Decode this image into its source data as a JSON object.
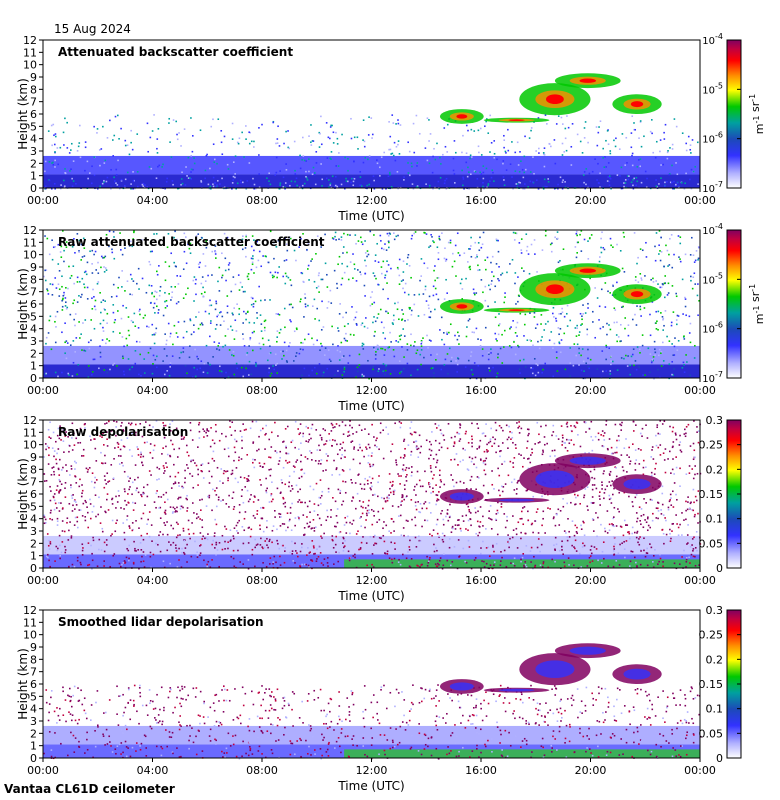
{
  "date_label": "15 Aug 2024",
  "footer_label": "Vantaa CL61D ceilometer",
  "colors": {
    "background": "#ffffff",
    "cmap": [
      "#ffffff",
      "#b0b0ff",
      "#3232ff",
      "#1c4ab8",
      "#00a0a0",
      "#00c800",
      "#ffff00",
      "#ff8c00",
      "#ff0000",
      "#c00040",
      "#800060"
    ]
  },
  "chart_data": [
    {
      "type": "heatmap",
      "title": "Attenuated backscatter coefficient",
      "xlabel": "Time (UTC)",
      "ylabel": "Height (km)",
      "xticks": [
        "00:00",
        "04:00",
        "08:00",
        "12:00",
        "16:00",
        "20:00",
        "00:00"
      ],
      "yticks": [
        "0",
        "1",
        "2",
        "3",
        "4",
        "5",
        "6",
        "7",
        "8",
        "9",
        "10",
        "11",
        "12"
      ],
      "xlim": [
        0,
        24
      ],
      "ylim": [
        0,
        12
      ],
      "colorbar": {
        "scale": "log",
        "ticks": [
          "10-7",
          "10-6",
          "10-5",
          "10-4"
        ],
        "unit_label": "m-1 sr-1"
      }
    },
    {
      "type": "heatmap",
      "title": "Raw attenuated backscatter coefficient",
      "xlabel": "Time (UTC)",
      "ylabel": "Height (km)",
      "xticks": [
        "00:00",
        "04:00",
        "08:00",
        "12:00",
        "16:00",
        "20:00",
        "00:00"
      ],
      "yticks": [
        "0",
        "1",
        "2",
        "3",
        "4",
        "5",
        "6",
        "7",
        "8",
        "9",
        "10",
        "11",
        "12"
      ],
      "xlim": [
        0,
        24
      ],
      "ylim": [
        0,
        12
      ],
      "colorbar": {
        "scale": "log",
        "ticks": [
          "10-7",
          "10-6",
          "10-5",
          "10-4"
        ],
        "unit_label": "m-1 sr-1"
      }
    },
    {
      "type": "heatmap",
      "title": "Raw depolarisation",
      "xlabel": "Time (UTC)",
      "ylabel": "Height (km)",
      "xticks": [
        "00:00",
        "04:00",
        "08:00",
        "12:00",
        "16:00",
        "20:00",
        "00:00"
      ],
      "yticks": [
        "0",
        "1",
        "2",
        "3",
        "4",
        "5",
        "6",
        "7",
        "8",
        "9",
        "10",
        "11",
        "12"
      ],
      "xlim": [
        0,
        24
      ],
      "ylim": [
        0,
        12
      ],
      "colorbar": {
        "scale": "linear",
        "ticks": [
          "0",
          "0.05",
          "0.1",
          "0.15",
          "0.2",
          "0.25",
          "0.3"
        ],
        "unit_label": ""
      }
    },
    {
      "type": "heatmap",
      "title": "Smoothed lidar depolarisation",
      "xlabel": "Time (UTC)",
      "ylabel": "Height (km)",
      "xticks": [
        "00:00",
        "04:00",
        "08:00",
        "12:00",
        "16:00",
        "20:00",
        "00:00"
      ],
      "yticks": [
        "0",
        "1",
        "2",
        "3",
        "4",
        "5",
        "6",
        "7",
        "8",
        "9",
        "10",
        "11",
        "12"
      ],
      "xlim": [
        0,
        24
      ],
      "ylim": [
        0,
        12
      ],
      "colorbar": {
        "scale": "linear",
        "ticks": [
          "0",
          "0.05",
          "0.1",
          "0.15",
          "0.2",
          "0.25",
          "0.3"
        ],
        "unit_label": ""
      }
    }
  ]
}
